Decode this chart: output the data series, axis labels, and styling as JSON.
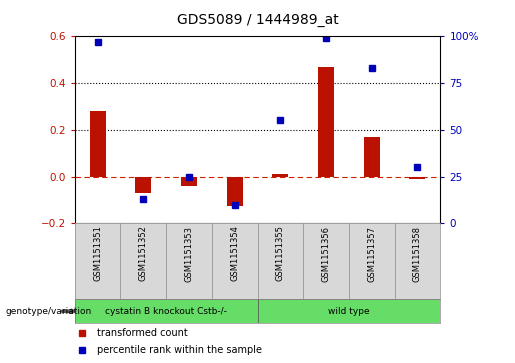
{
  "title": "GDS5089 / 1444989_at",
  "samples": [
    "GSM1151351",
    "GSM1151352",
    "GSM1151353",
    "GSM1151354",
    "GSM1151355",
    "GSM1151356",
    "GSM1151357",
    "GSM1151358"
  ],
  "red_bars": [
    0.28,
    -0.07,
    -0.04,
    -0.125,
    0.01,
    0.47,
    0.17,
    -0.01
  ],
  "blue_dots_pct": [
    97,
    13,
    25,
    10,
    55,
    99,
    83,
    30
  ],
  "left_ylim": [
    -0.2,
    0.6
  ],
  "right_ylim": [
    0,
    100
  ],
  "left_ticks": [
    -0.2,
    0.0,
    0.2,
    0.4,
    0.6
  ],
  "right_ticks": [
    0,
    25,
    50,
    75,
    100
  ],
  "groups": [
    {
      "label": "cystatin B knockout Cstb-/-",
      "n": 4,
      "color": "#66dd66"
    },
    {
      "label": "wild type",
      "n": 4,
      "color": "#66dd66"
    }
  ],
  "bar_color": "#bb1100",
  "dot_color": "#0000bb",
  "zero_line_color": "#cc2200",
  "bg_color": "#ffffff",
  "panel_bg": "#d8d8d8",
  "legend_items": [
    {
      "color": "#bb1100",
      "label": "transformed count"
    },
    {
      "color": "#0000bb",
      "label": "percentile rank within the sample"
    }
  ],
  "genotype_label": "genotype/variation",
  "title_fontsize": 10
}
